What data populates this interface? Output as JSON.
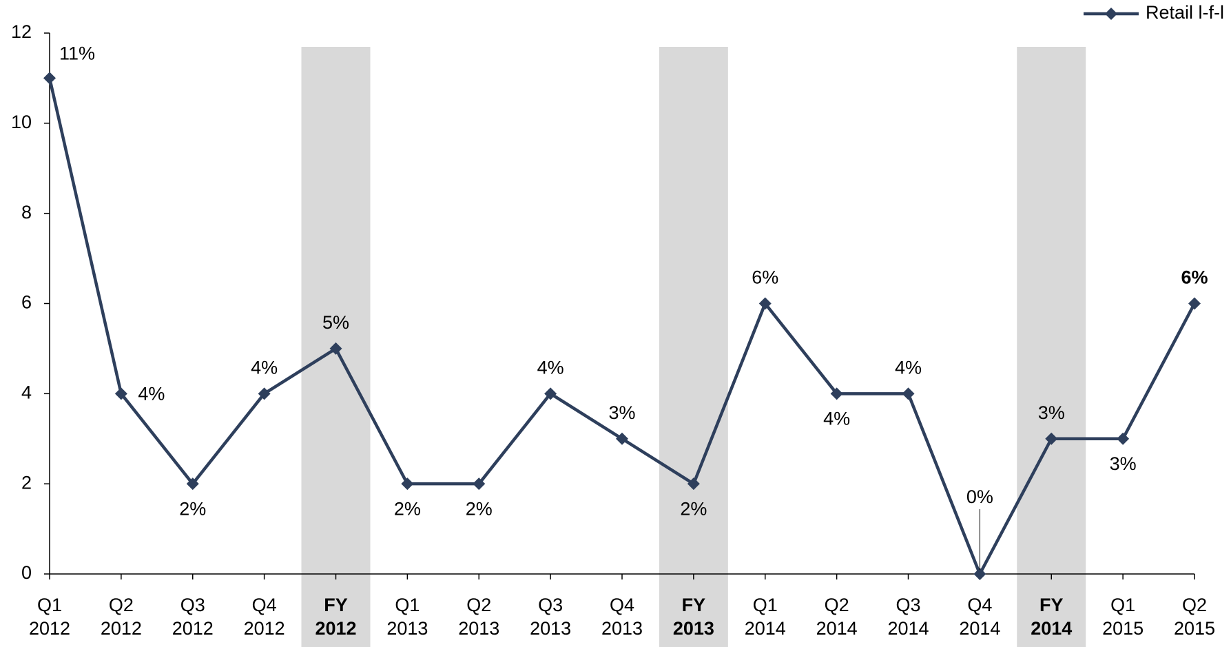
{
  "chart_data": {
    "type": "line",
    "categories": [
      [
        "Q1",
        "2012"
      ],
      [
        "Q2",
        "2012"
      ],
      [
        "Q3",
        "2012"
      ],
      [
        "Q4",
        "2012"
      ],
      [
        "FY",
        "2012"
      ],
      [
        "Q1",
        "2013"
      ],
      [
        "Q2",
        "2013"
      ],
      [
        "Q3",
        "2013"
      ],
      [
        "Q4",
        "2013"
      ],
      [
        "FY",
        "2013"
      ],
      [
        "Q1",
        "2014"
      ],
      [
        "Q2",
        "2014"
      ],
      [
        "Q3",
        "2014"
      ],
      [
        "Q4",
        "2014"
      ],
      [
        "FY",
        "2014"
      ],
      [
        "Q1",
        "2015"
      ],
      [
        "Q2",
        "2015"
      ]
    ],
    "highlighted": [
      4,
      9,
      14
    ],
    "highlight_color": "#d9d9d9",
    "series": [
      {
        "name": "Retail l-f-l",
        "color": "#2e3f5c",
        "values": [
          11,
          4,
          2,
          4,
          5,
          2,
          2,
          4,
          3,
          2,
          6,
          4,
          4,
          0,
          3,
          3,
          6
        ],
        "value_labels": [
          "11%",
          "4%",
          "2%",
          "4%",
          "5%",
          "2%",
          "2%",
          "4%",
          "3%",
          "2%",
          "6%",
          "4%",
          "4%",
          "0%",
          "3%",
          "3%",
          "6%"
        ]
      }
    ],
    "ylim": [
      0,
      12
    ],
    "yticks": [
      0,
      2,
      4,
      6,
      8,
      10,
      12
    ],
    "legend": "top-right"
  }
}
